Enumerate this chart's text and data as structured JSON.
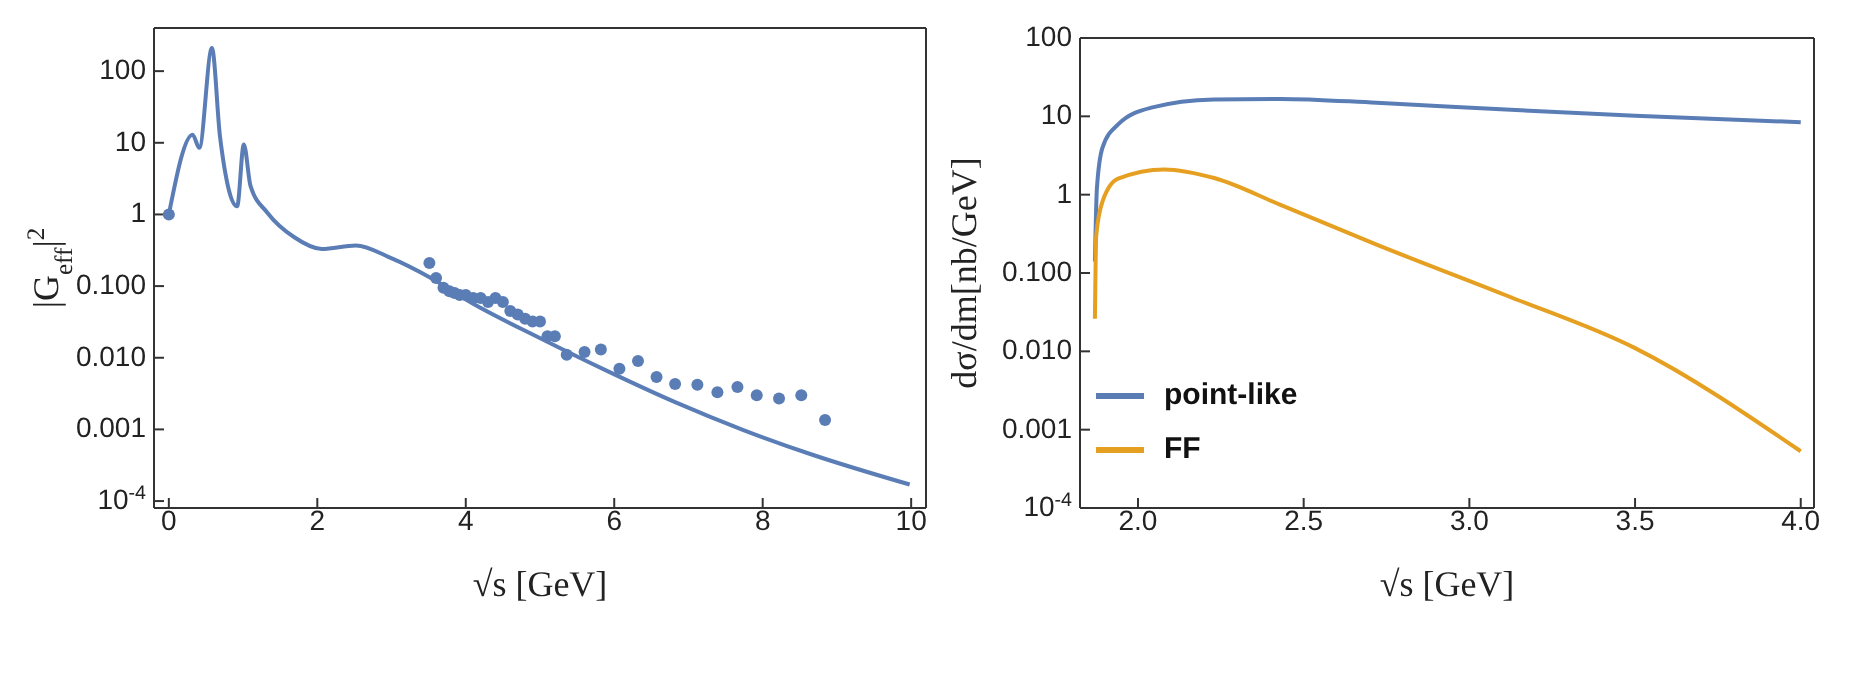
{
  "chart_data": [
    {
      "type": "line",
      "xlabel": "√s [GeV]",
      "ylabel": "|G$_{eff}$|$^{2}$",
      "log": "y",
      "xlim": [
        -0.2,
        10.2
      ],
      "ylim": [
        8e-05,
        400
      ],
      "xticks": [
        0,
        2,
        4,
        6,
        8,
        10
      ],
      "yticks": [
        100,
        10,
        1,
        {
          "value": 0.1,
          "label": "0.100"
        },
        {
          "value": 0.01,
          "label": "0.010"
        },
        0.001,
        {
          "value": 0.0001,
          "label": "10$^{-4}$"
        }
      ],
      "legend": false,
      "series": [
        {
          "type": "line",
          "color": "#5b7db6",
          "x": [
            0,
            0.32,
            0.41,
            0.58,
            0.69,
            0.92,
            1.01,
            1.1,
            1.33,
            1.69,
            2.06,
            2.52,
            2.98,
            3.53,
            4.07,
            4.99,
            5.91,
            6.82,
            7.74,
            8.65,
            9.98
          ],
          "values": [
            1.0,
            13,
            8.5,
            210,
            12,
            1.3,
            9.5,
            2.5,
            1.05,
            0.48,
            0.33,
            0.37,
            0.25,
            0.13,
            0.059,
            0.019,
            0.0065,
            0.0024,
            0.00098,
            0.00045,
            0.00017
          ]
        },
        {
          "type": "scatter",
          "marker": "circle",
          "color": "#5b7db6",
          "x": [
            0,
            3.51,
            3.6,
            3.7,
            3.78,
            3.85,
            3.92,
            4.0,
            4.1,
            4.2,
            4.3,
            4.4,
            4.5,
            4.6,
            4.7,
            4.8,
            4.9,
            5.0,
            5.1,
            5.2,
            5.36,
            5.6,
            5.82,
            6.07,
            6.32,
            6.57,
            6.82,
            7.12,
            7.39,
            7.66,
            7.92,
            8.22,
            8.52,
            8.84
          ],
          "values": [
            1.0,
            0.21,
            0.13,
            0.095,
            0.085,
            0.08,
            0.075,
            0.075,
            0.068,
            0.068,
            0.06,
            0.068,
            0.06,
            0.045,
            0.04,
            0.035,
            0.032,
            0.032,
            0.02,
            0.02,
            0.011,
            0.012,
            0.013,
            0.007,
            0.009,
            0.0054,
            0.0043,
            0.0042,
            0.0033,
            0.0039,
            0.003,
            0.0027,
            0.003,
            0.00135
          ]
        }
      ]
    },
    {
      "type": "line",
      "xlabel": "√s [GeV]",
      "ylabel": "dσ/dm[nb/GeV]",
      "log": "y",
      "xlim": [
        1.825,
        4.04
      ],
      "ylim": [
        0.0001,
        100
      ],
      "xticks": [
        {
          "value": 2,
          "label": "2.0"
        },
        2.5,
        {
          "value": 3,
          "label": "3.0"
        },
        3.5,
        {
          "value": 4,
          "label": "4.0"
        }
      ],
      "yticks": [
        100,
        10,
        1,
        {
          "value": 0.1,
          "label": "0.100"
        },
        {
          "value": 0.01,
          "label": "0.010"
        },
        0.001,
        {
          "value": 0.0001,
          "label": "10$^{-4}$"
        }
      ],
      "legend": "bottom left",
      "line_style": "solid",
      "series": [
        {
          "name": "point-like",
          "color": "#5b7db6",
          "x": [
            1.87,
            1.876,
            1.893,
            1.94,
            2.04,
            2.23,
            2.43,
            2.72,
            3.11,
            3.5,
            4.0
          ],
          "values": [
            0.14,
            1.2,
            4,
            7.9,
            12.9,
            16.4,
            16.7,
            14.9,
            12.2,
            10.2,
            8.4
          ]
        },
        {
          "name": "FF",
          "color": "#e6a021",
          "x": [
            1.87,
            1.874,
            1.893,
            1.94,
            2.08,
            2.23,
            2.43,
            2.72,
            3.11,
            3.5,
            4.0
          ],
          "values": [
            0.026,
            0.3,
            0.82,
            1.6,
            2.1,
            1.63,
            0.74,
            0.23,
            0.052,
            0.011,
            0.00053
          ]
        }
      ]
    }
  ]
}
